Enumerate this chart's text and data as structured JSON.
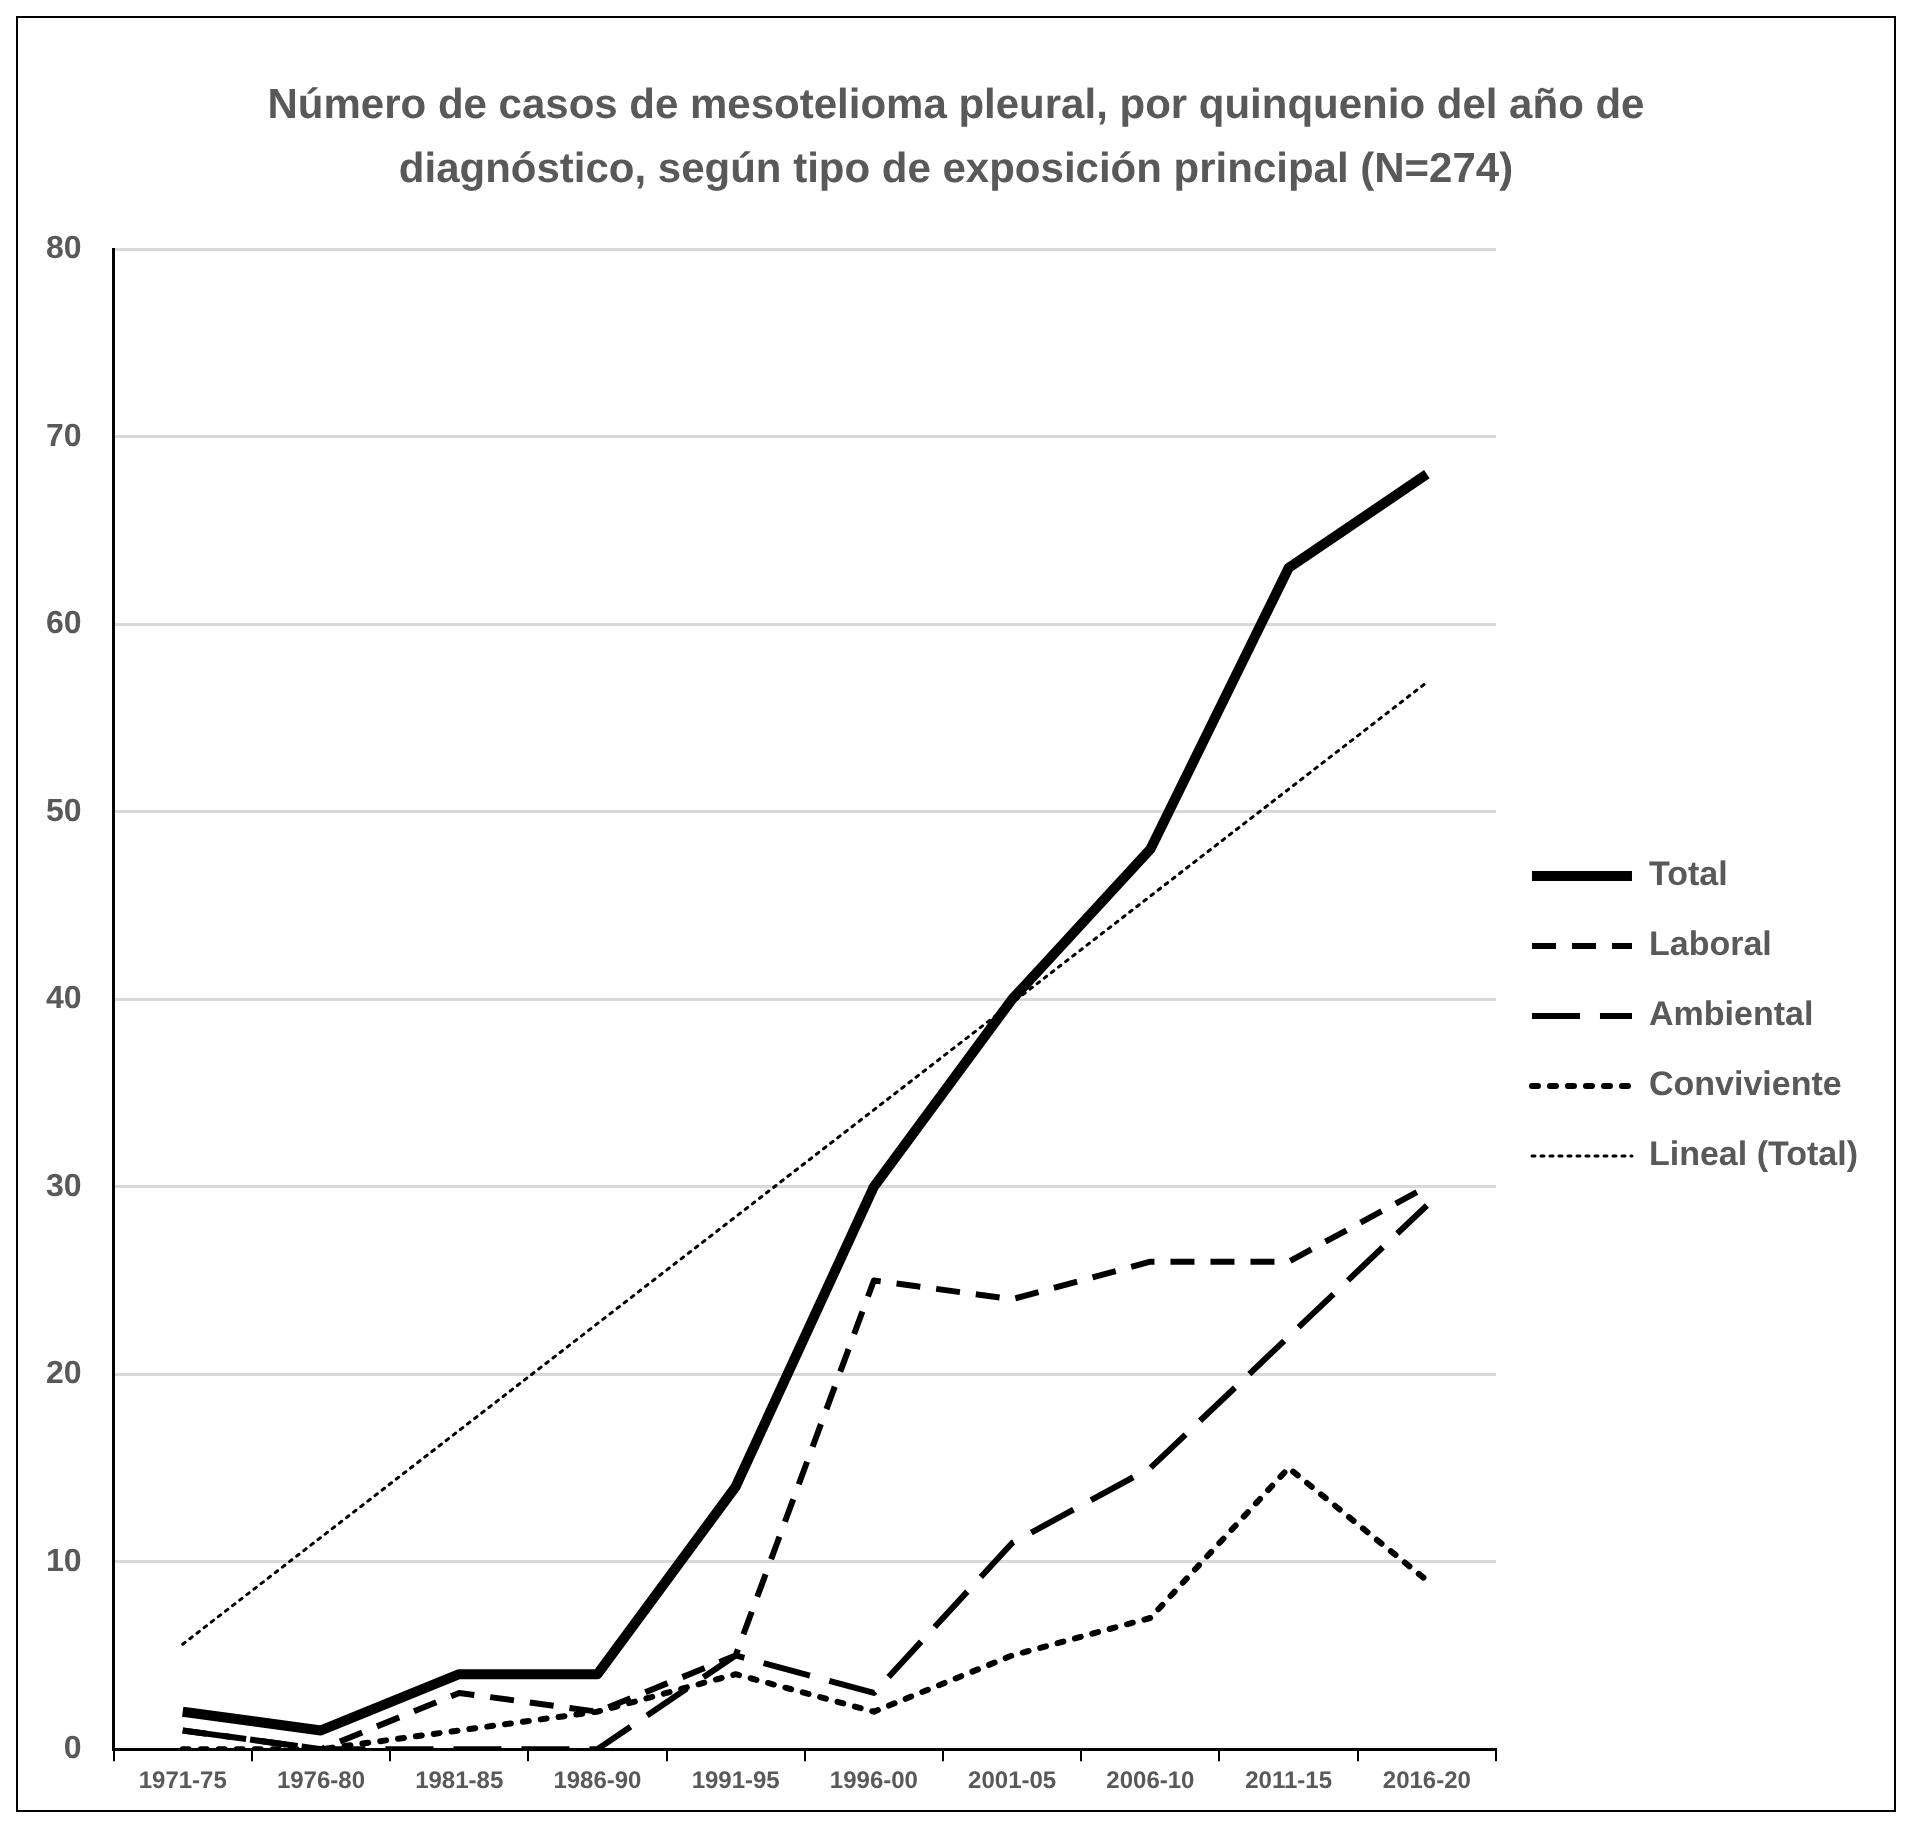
{
  "chart_data": {
    "type": "line",
    "title": "Número de casos de mesotelioma pleural, por quinquenio del año de diagnóstico, según tipo de exposición principal (N=274)",
    "categories": [
      "1971-75",
      "1976-80",
      "1981-85",
      "1986-90",
      "1991-95",
      "1996-00",
      "2001-05",
      "2006-10",
      "2011-15",
      "2016-20"
    ],
    "series": [
      {
        "name": "Total",
        "color": "#000000",
        "line_style": "solid",
        "values": [
          2,
          1,
          4,
          4,
          14,
          30,
          40,
          48,
          63,
          68
        ]
      },
      {
        "name": "Laboral",
        "color": "#000000",
        "line_style": "dashed",
        "values": [
          1,
          0,
          3,
          2,
          5,
          25,
          24,
          26,
          26,
          30
        ]
      },
      {
        "name": "Ambiental",
        "color": "#000000",
        "line_style": "dashed",
        "values": [
          1,
          0,
          0,
          0,
          5,
          3,
          11,
          15,
          22,
          29
        ]
      },
      {
        "name": "Conviviente",
        "color": "#000000",
        "line_style": "dotted",
        "values": [
          0,
          0,
          1,
          2,
          4,
          2,
          5,
          7,
          15,
          9
        ]
      },
      {
        "name": "Lineal (Total)",
        "color": "#000000",
        "line_style": "dotted",
        "values": [
          5.6,
          11.3,
          17,
          22.7,
          28.4,
          34.1,
          39.8,
          45.5,
          51.2,
          56.9
        ]
      }
    ],
    "ylim": [
      0,
      80
    ],
    "yticks": [
      0,
      10,
      20,
      30,
      40,
      50,
      60,
      70,
      80
    ],
    "grid": "y",
    "legend": "right",
    "marker": "none"
  }
}
